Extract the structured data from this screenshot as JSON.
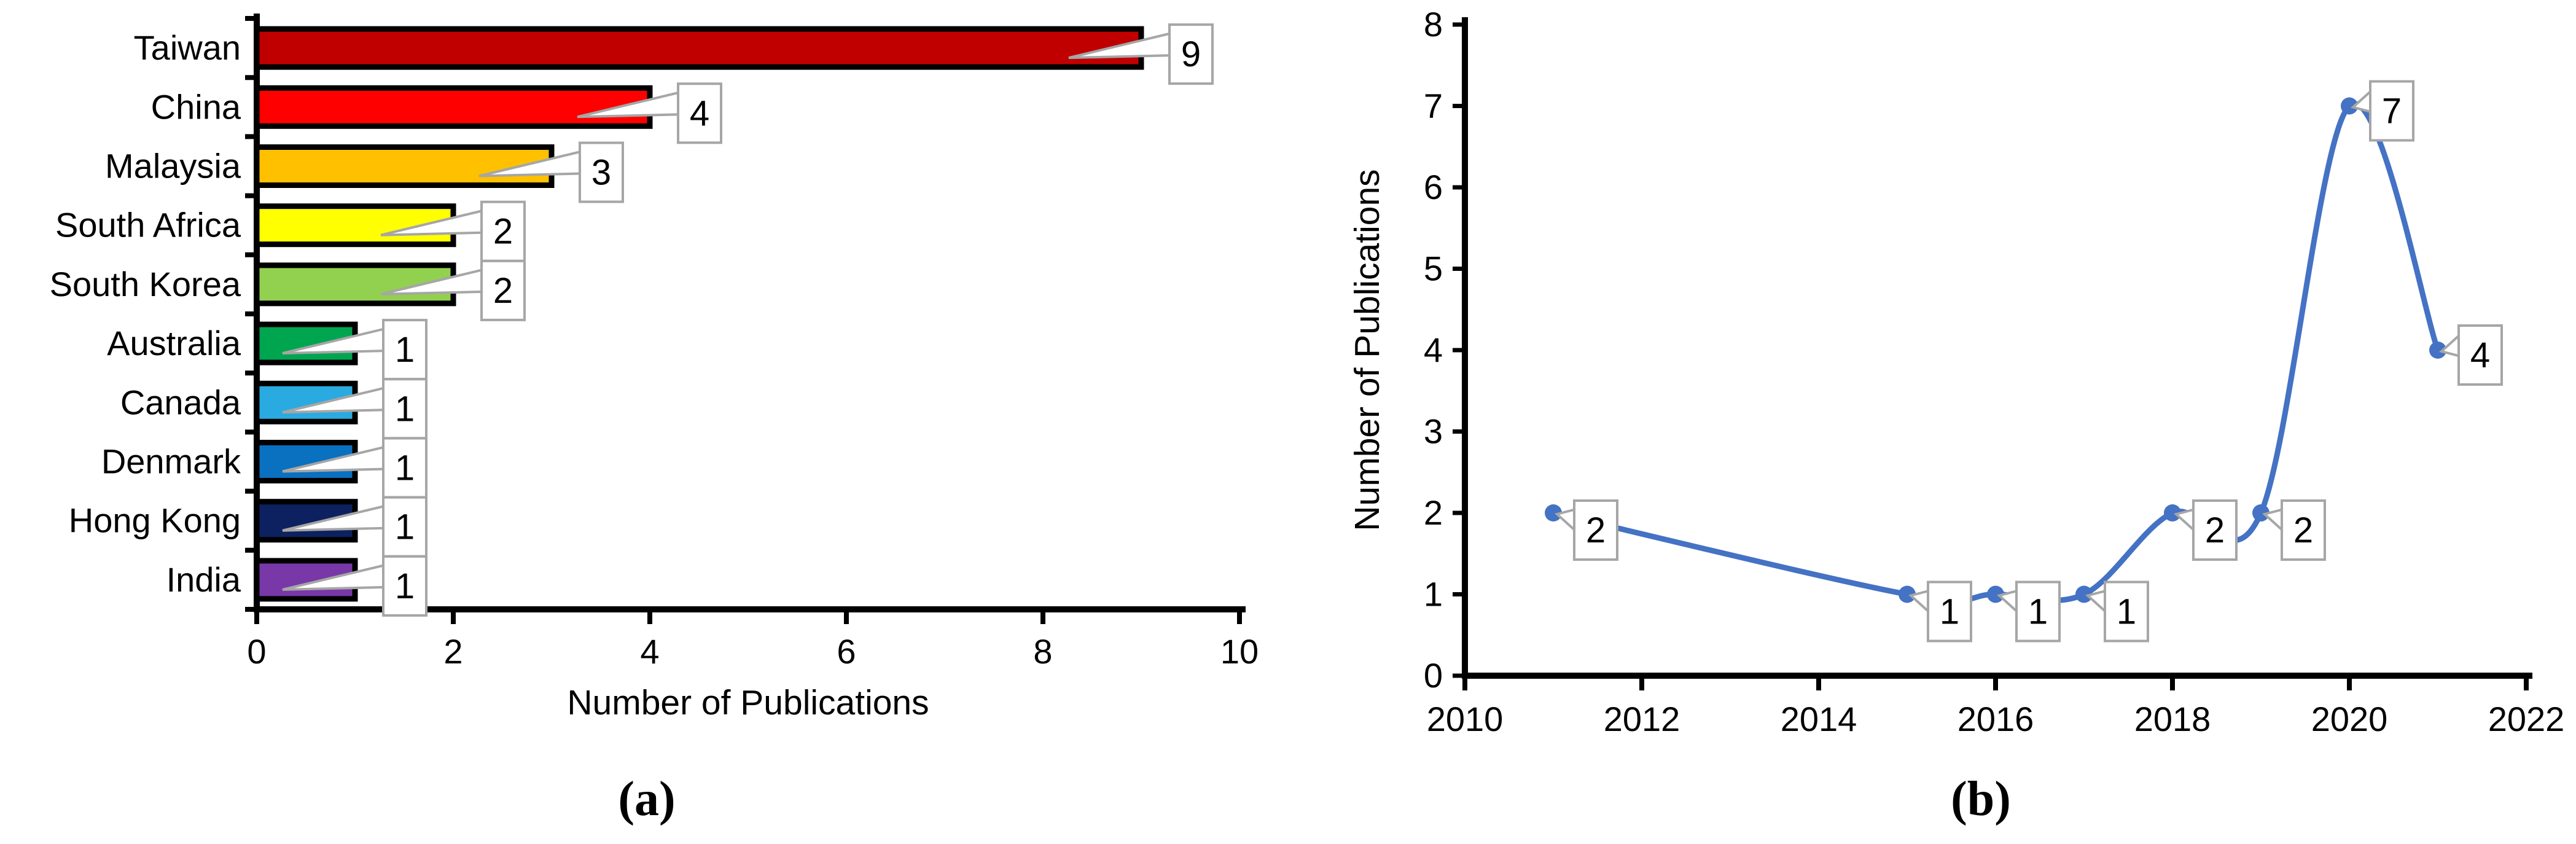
{
  "figure": {
    "background": "#FFFFFF",
    "axis_color": "#000000"
  },
  "chart_data": [
    {
      "type": "bar",
      "orientation": "horizontal",
      "panel_label": "(a)",
      "xlabel": "Number of Publications",
      "categories": [
        "Taiwan",
        "China",
        "Malaysia",
        "South Africa",
        "South Korea",
        "Australia",
        "Canada",
        "Denmark",
        "Hong Kong",
        "India"
      ],
      "values": [
        9,
        4,
        3,
        2,
        2,
        1,
        1,
        1,
        1,
        1
      ],
      "data_labels": [
        "9",
        "4",
        "3",
        "2",
        "2",
        "1",
        "1",
        "1",
        "1",
        "1"
      ],
      "bar_colors": [
        "#C00000",
        "#FE0000",
        "#FFC000",
        "#FFFF00",
        "#92D050",
        "#00A550",
        "#29ABE2",
        "#0A70C0",
        "#0D2161",
        "#7838A8"
      ],
      "bar_outline": "#000000",
      "xlim": [
        0,
        10
      ],
      "xticks": [
        0,
        2,
        4,
        6,
        8,
        10
      ],
      "grid": false,
      "legend": "none",
      "callout_border": "#A6A6A6",
      "callout_fill": "#FFFFFF"
    },
    {
      "type": "line",
      "panel_label": "(b)",
      "ylabel": "Number of Publications",
      "x": [
        2011,
        2015,
        2016,
        2017,
        2018,
        2019,
        2020,
        2021
      ],
      "y": [
        2,
        1,
        1,
        1,
        2,
        2,
        7,
        4
      ],
      "data_labels": [
        "2",
        "1",
        "1",
        "1",
        "2",
        "2",
        "7",
        "4"
      ],
      "xlim": [
        2010,
        2022
      ],
      "ylim": [
        0,
        8
      ],
      "xticks": [
        2010,
        2012,
        2014,
        2016,
        2018,
        2020,
        2022
      ],
      "yticks": [
        0,
        1,
        2,
        3,
        4,
        5,
        6,
        7,
        8
      ],
      "line_color": "#4472C4",
      "marker_color": "#4472C4",
      "smooth": true,
      "grid": false,
      "legend": "none",
      "callout_border": "#A6A6A6",
      "callout_fill": "#FFFFFF"
    }
  ]
}
